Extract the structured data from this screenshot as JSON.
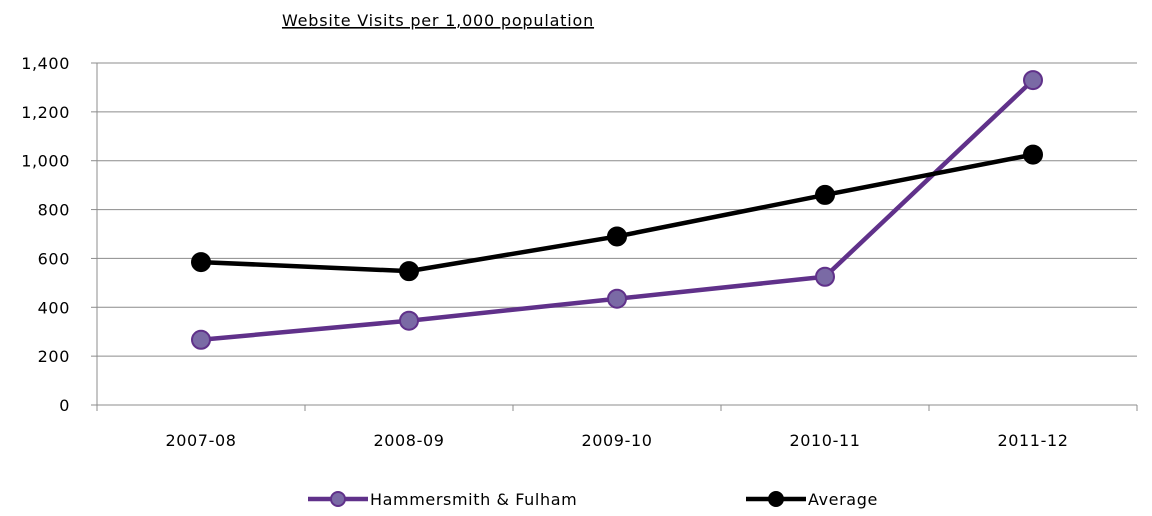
{
  "chart_data": {
    "type": "line",
    "title": "Website Visits per 1,000 population",
    "xlabel": "",
    "ylabel": "",
    "categories": [
      "2007-08",
      "2008-09",
      "2009-10",
      "2010-11",
      "2011-12"
    ],
    "ylim": [
      0,
      1400
    ],
    "yticks": [
      0,
      200,
      400,
      600,
      800,
      1000,
      1200,
      1400
    ],
    "ytick_labels": [
      "0",
      "200",
      "400",
      "600",
      "800",
      "1,000",
      "1,200",
      "1,400"
    ],
    "grid": true,
    "legend_position": "bottom",
    "series": [
      {
        "name": "Hammersmith & Fulham",
        "values": [
          267,
          345,
          435,
          525,
          1330
        ],
        "line_color": "#60318a",
        "marker_color": "#7a6aa5",
        "marker_edge_color": "#60318a"
      },
      {
        "name": "Average",
        "values": [
          585,
          548,
          690,
          860,
          1025
        ],
        "line_color": "#000000",
        "marker_color": "#000000",
        "marker_edge_color": "#000000"
      }
    ]
  }
}
